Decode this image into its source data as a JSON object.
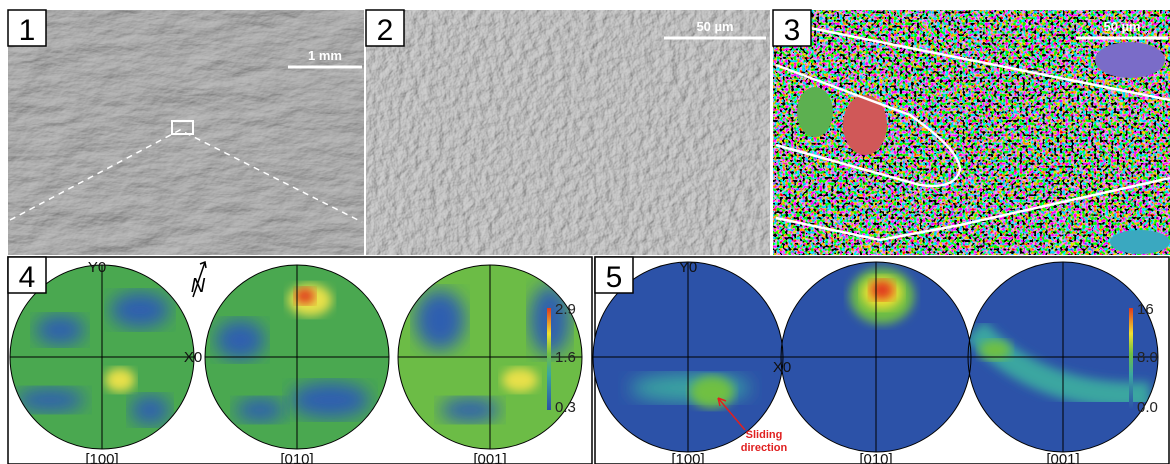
{
  "panels": [
    {
      "number": "1",
      "scale_bar": "1 mm"
    },
    {
      "number": "2",
      "scale_bar": "50 µm"
    },
    {
      "number": "3",
      "scale_bar": "50 µm"
    },
    {
      "number": "4",
      "axis_y": "Y0",
      "axis_x": "X0",
      "north": "N",
      "pole_figures": [
        "[100]",
        "[010]",
        "[001]"
      ],
      "colorbar": [
        "2.9",
        "1.6",
        "0.3"
      ]
    },
    {
      "number": "5",
      "axis_y": "Y0",
      "axis_x": "X0",
      "pole_figures": [
        "[100]",
        "[010]",
        "[001]"
      ],
      "colorbar": [
        "16",
        "8.0",
        "0.0"
      ],
      "annotation": [
        "Sliding",
        "direction"
      ]
    }
  ]
}
